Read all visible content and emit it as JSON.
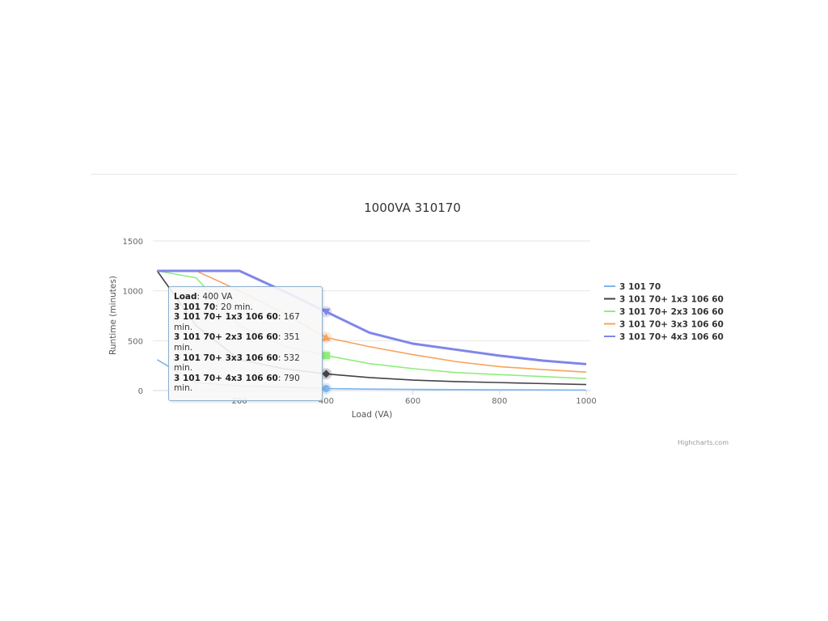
{
  "chart_data": {
    "type": "line",
    "title": "1000VA 310170",
    "xlabel": "Load (VA)",
    "ylabel": "Runtime (minutes)",
    "xlim": [
      0,
      1000
    ],
    "ylim": [
      0,
      1500
    ],
    "xticks": [
      200,
      400,
      600,
      800,
      1000
    ],
    "yticks": [
      0,
      500,
      1000,
      1500
    ],
    "grid": true,
    "legend": "right",
    "x": [
      10,
      100,
      200,
      300,
      400,
      500,
      600,
      700,
      800,
      900,
      1000
    ],
    "series": [
      {
        "name": "3 101 70",
        "color": "#7cb5ec",
        "marker": "circle",
        "values": [
          310,
          80,
          45,
          35,
          20,
          15,
          12,
          10,
          8,
          7,
          5
        ]
      },
      {
        "name": "3 101 70+ 1x3 106 60",
        "color": "#434348",
        "marker": "diamond",
        "values": [
          1200,
          650,
          310,
          220,
          167,
          130,
          105,
          90,
          80,
          70,
          60
        ]
      },
      {
        "name": "3 101 70+ 2x3 106 60",
        "color": "#90ed7d",
        "marker": "square",
        "values": [
          1200,
          1130,
          650,
          450,
          351,
          270,
          220,
          180,
          160,
          140,
          120
        ]
      },
      {
        "name": "3 101 70+ 3x3 106 60",
        "color": "#f7a35c",
        "marker": "triangle",
        "values": [
          1200,
          1200,
          1000,
          780,
          532,
          440,
          360,
          290,
          240,
          210,
          185
        ]
      },
      {
        "name": "3 101 70+ 4x3 106 60",
        "color": "#8085e9",
        "marker": "triangle-down",
        "values": [
          1200,
          1200,
          1200,
          1000,
          790,
          580,
          470,
          410,
          350,
          300,
          265
        ]
      }
    ],
    "tooltip": {
      "header_label": "Load",
      "header_value": ": 400 VA",
      "rows": [
        {
          "name": "3 101 70",
          "value": ": 20 min."
        },
        {
          "name": "3 101 70+ 1x3 106 60",
          "value": ": 167 min."
        },
        {
          "name": "3 101 70+ 2x3 106 60",
          "value": ": 351 min."
        },
        {
          "name": "3 101 70+ 3x3 106 60",
          "value": ": 532 min."
        },
        {
          "name": "3 101 70+ 4x3 106 60",
          "value": ": 790 min."
        }
      ]
    },
    "hover_x": 400,
    "credits": "Highcharts.com"
  }
}
